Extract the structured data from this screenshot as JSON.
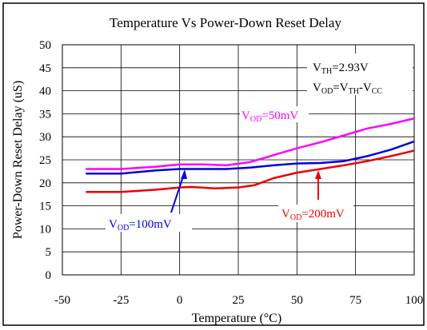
{
  "chart_data": {
    "type": "line",
    "title": "Temperature Vs Power-Down Reset Delay",
    "xlabel": "Temperature (°C)",
    "ylabel": "Power-Down Reset Delay (uS)",
    "xlim": [
      -50,
      100
    ],
    "ylim": [
      0,
      50
    ],
    "xticks": [
      "-50",
      "-25",
      "0",
      "25",
      "50",
      "75",
      "100"
    ],
    "yticks": [
      "0",
      "5",
      "10",
      "15",
      "20",
      "25",
      "30",
      "35",
      "40",
      "45",
      "50"
    ],
    "grid": true,
    "legend": "none",
    "annotations": {
      "vth": {
        "main": "V",
        "sub": "TH",
        "rest": "=2.93V"
      },
      "vod_formula": {
        "main": "V",
        "sub": "OD",
        "rest": "=V",
        "sub2": "TH",
        "rest2": "-V",
        "sub3": "CC"
      }
    },
    "series": [
      {
        "name": "VOD=50mV",
        "label_main": "V",
        "label_sub": "OD",
        "label_rest": "=50mV",
        "color": "#ff00ff",
        "x": [
          -40,
          -25,
          -10,
          0,
          10,
          20,
          30,
          40,
          50,
          60,
          70,
          80,
          90,
          100
        ],
        "y": [
          23,
          23,
          23.5,
          24,
          24,
          23.8,
          24.5,
          26,
          27.5,
          28.8,
          30.3,
          31.8,
          32.8,
          34
        ]
      },
      {
        "name": "VOD=100mV",
        "label_main": "V",
        "label_sub": "OD",
        "label_rest": "=100mV",
        "color": "#0000dd",
        "x": [
          -40,
          -25,
          -10,
          0,
          10,
          20,
          30,
          40,
          50,
          60,
          70,
          80,
          90,
          100
        ],
        "y": [
          22,
          22,
          22.7,
          23,
          23,
          23,
          23.3,
          23.8,
          24.2,
          24.3,
          24.7,
          25.8,
          27.2,
          29
        ]
      },
      {
        "name": "VOD=200mV",
        "label_main": "V",
        "label_sub": "OD",
        "label_rest": "=200mV",
        "color": "#ee0000",
        "x": [
          -40,
          -25,
          -10,
          0,
          5,
          15,
          25,
          32,
          40,
          50,
          60,
          70,
          80,
          90,
          100
        ],
        "y": [
          18,
          18,
          18.5,
          19,
          19.1,
          18.8,
          19,
          19.5,
          21,
          22.2,
          23,
          23.8,
          24.7,
          25.8,
          27
        ]
      }
    ]
  }
}
